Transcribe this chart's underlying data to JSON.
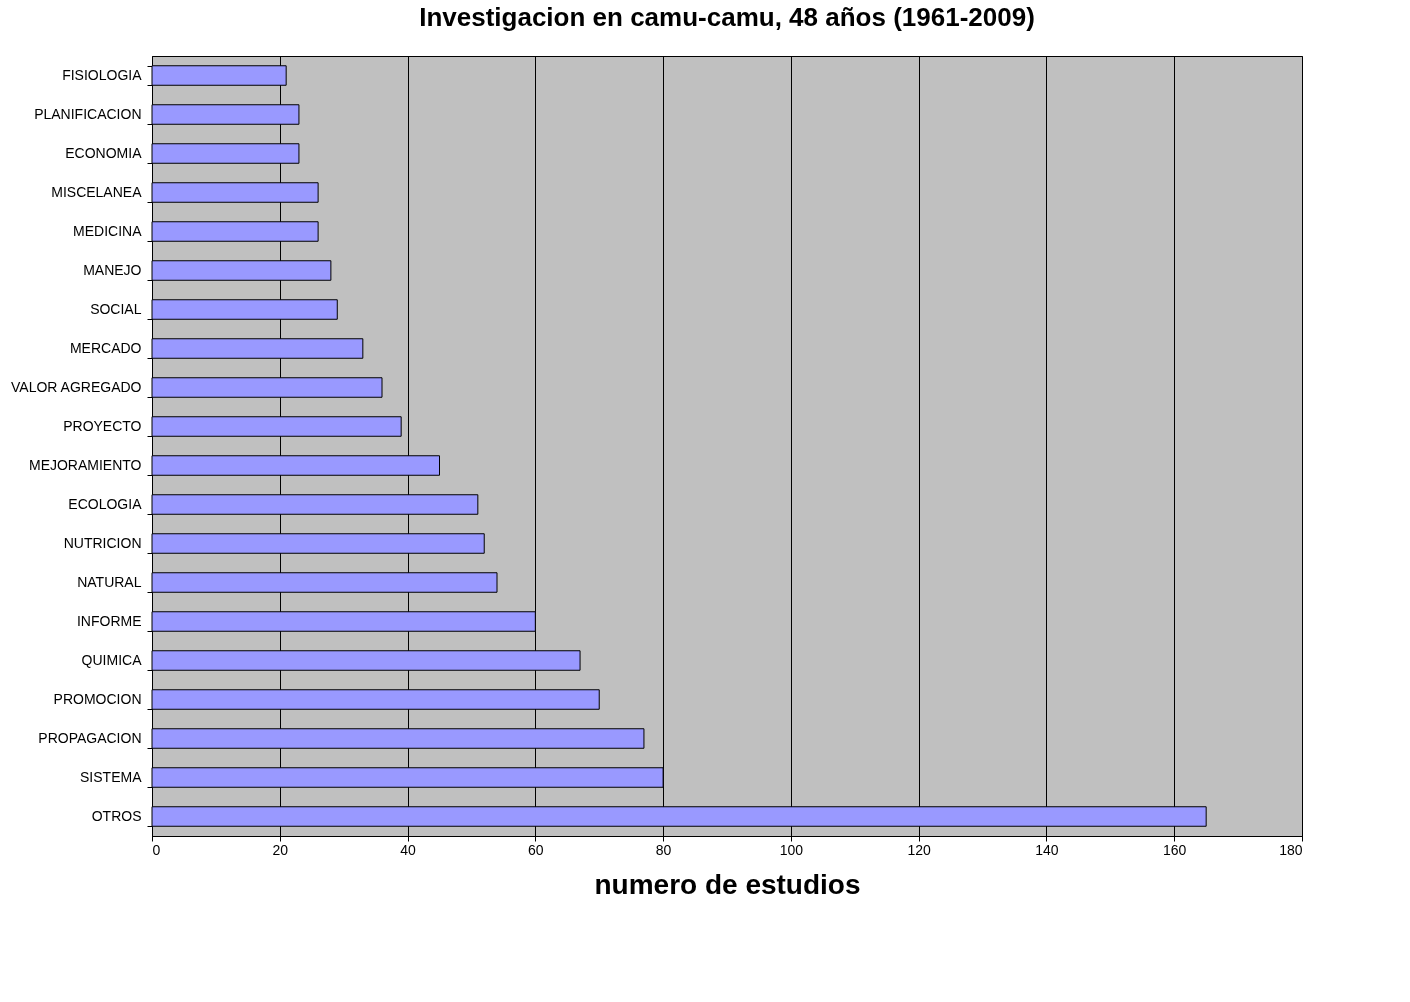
{
  "chart_data": {
    "type": "bar",
    "orientation": "horizontal",
    "title": "Investigacion en camu-camu, 48 años (1961-2009)",
    "xlabel": "numero de estudios",
    "categories": [
      "FISIOLOGIA",
      "PLANIFICACION",
      "ECONOMIA",
      "MISCELANEA",
      "MEDICINA",
      "MANEJO",
      "SOCIAL",
      "MERCADO",
      "VALOR  AGREGADO",
      "PROYECTO",
      "MEJORAMIENTO",
      "ECOLOGIA",
      "NUTRICION",
      "NATURAL",
      "INFORME",
      "QUIMICA",
      "PROMOCION",
      "PROPAGACION",
      "SISTEMA",
      "OTROS"
    ],
    "values": [
      21,
      23,
      23,
      26,
      26,
      28,
      29,
      33,
      36,
      39,
      45,
      51,
      52,
      54,
      60,
      67,
      70,
      77,
      80,
      165
    ],
    "color": "#9999ff",
    "xlim": [
      0,
      180
    ],
    "xticks": [
      0,
      20,
      40,
      60,
      80,
      100,
      120,
      140,
      160,
      180
    ],
    "grid": "x"
  }
}
